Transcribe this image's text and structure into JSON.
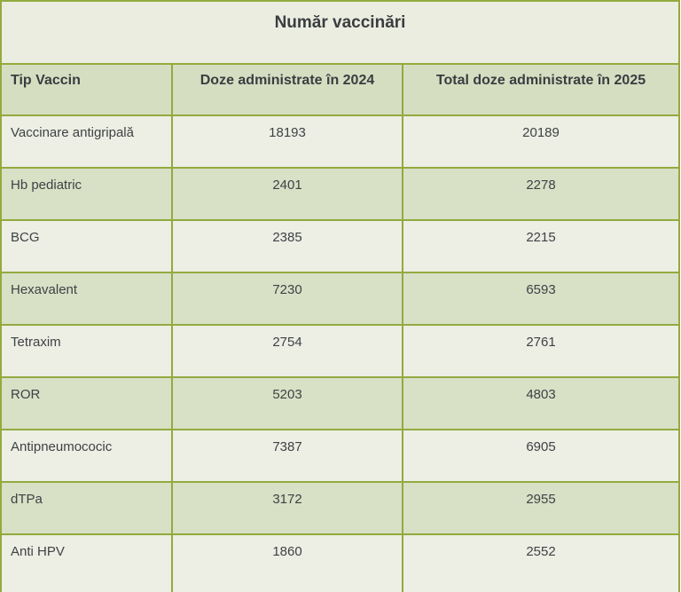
{
  "colors": {
    "page_bg": "#ffffff",
    "grid_green": "#93aa3e",
    "title_bg": "#ebede1",
    "header_bg": "#d6dec2",
    "row_light_bg": "#edeee4",
    "row_dark_bg": "#d8e0c6",
    "text": "#3f4245",
    "text_strong": "#3a3d40"
  },
  "table": {
    "title": "Număr vaccinări",
    "columns": [
      "Tip Vaccin",
      "Doze administrate în 2024",
      "Total doze administrate în 2025"
    ],
    "rows": [
      {
        "tip": "Vaccinare antigripală",
        "doze_2024": "18193",
        "total_2025": "20189"
      },
      {
        "tip": "Hb pediatric",
        "doze_2024": "2401",
        "total_2025": "2278"
      },
      {
        "tip": "BCG",
        "doze_2024": "2385",
        "total_2025": "2215"
      },
      {
        "tip": "Hexavalent",
        "doze_2024": "7230",
        "total_2025": "6593"
      },
      {
        "tip": "Tetraxim",
        "doze_2024": "2754",
        "total_2025": "2761"
      },
      {
        "tip": "ROR",
        "doze_2024": "5203",
        "total_2025": "4803"
      },
      {
        "tip": "Antipneumococic",
        "doze_2024": "7387",
        "total_2025": "6905"
      },
      {
        "tip": "dTPa",
        "doze_2024": "3172",
        "total_2025": "2955"
      },
      {
        "tip": "Anti HPV",
        "doze_2024": "1860",
        "total_2025": "2552"
      }
    ]
  }
}
